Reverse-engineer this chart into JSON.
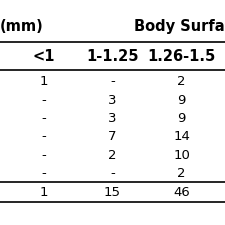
{
  "col_label": "(mm)",
  "body_surface_header": "Body Surfa",
  "col_headers": [
    "<1",
    "1-1.25",
    "1.26-1.5"
  ],
  "data_rows": [
    [
      "1",
      "-",
      "2"
    ],
    [
      "-",
      "3",
      "9"
    ],
    [
      "-",
      "3",
      "9"
    ],
    [
      "-",
      "7",
      "14"
    ],
    [
      "-",
      "2",
      "10"
    ],
    [
      "-",
      "-",
      "2"
    ]
  ],
  "total_row": [
    "1",
    "15",
    "46"
  ],
  "bg_color": "#ffffff",
  "line_color": "#000000",
  "font_size": 9.5,
  "header_font_size": 10.5
}
